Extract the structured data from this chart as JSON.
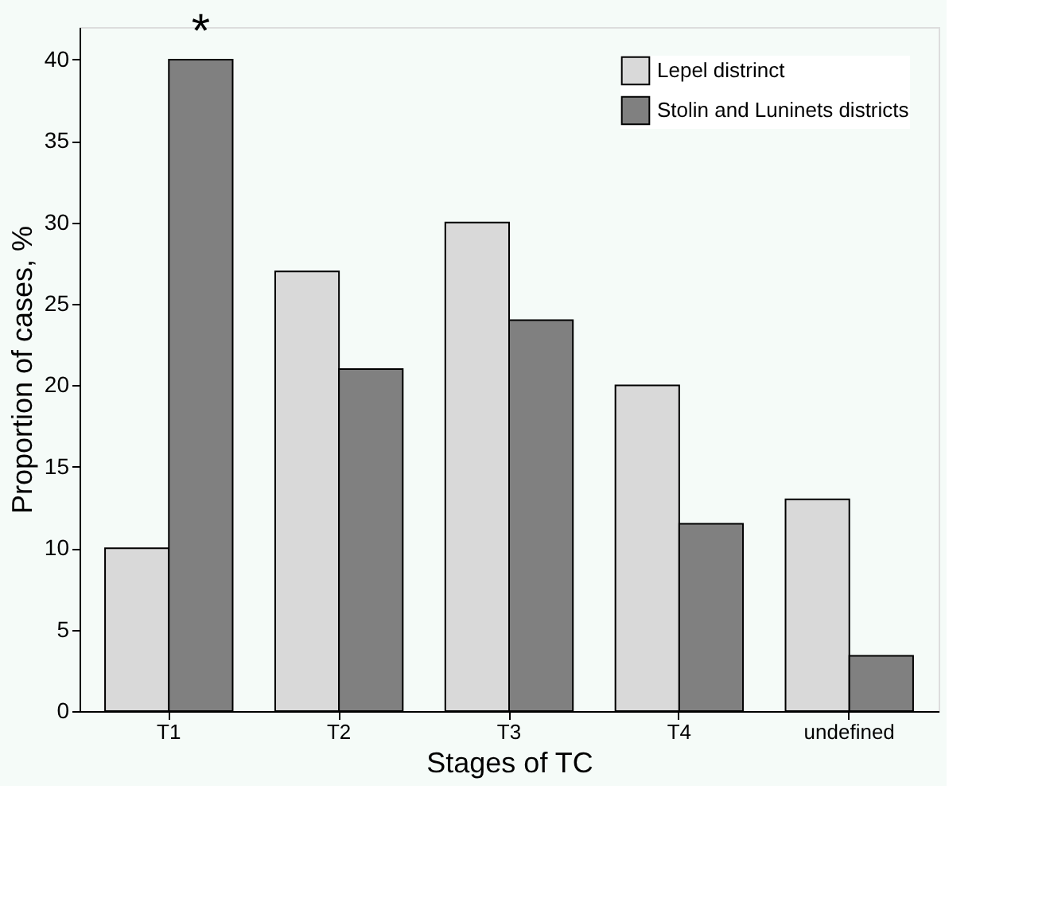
{
  "chart_data": {
    "type": "bar",
    "xlabel": "Stages of TC",
    "ylabel": "Proportion of cases, %",
    "categories": [
      "T1",
      "T2",
      "T3",
      "T4",
      "undefined"
    ],
    "series": [
      {
        "name": "Lepel distrinct",
        "color": "#d9d9d9",
        "values": [
          10,
          27,
          30,
          20,
          13
        ]
      },
      {
        "name": "Stolin and Luninets districts",
        "color": "#808080",
        "values": [
          40,
          21,
          24,
          11.5,
          3.4
        ]
      }
    ],
    "ylim": [
      0,
      42
    ],
    "yticks": [
      0,
      5,
      10,
      15,
      20,
      25,
      30,
      35,
      40
    ],
    "grid": false,
    "legend": "top right",
    "annotations": [
      "*"
    ]
  }
}
